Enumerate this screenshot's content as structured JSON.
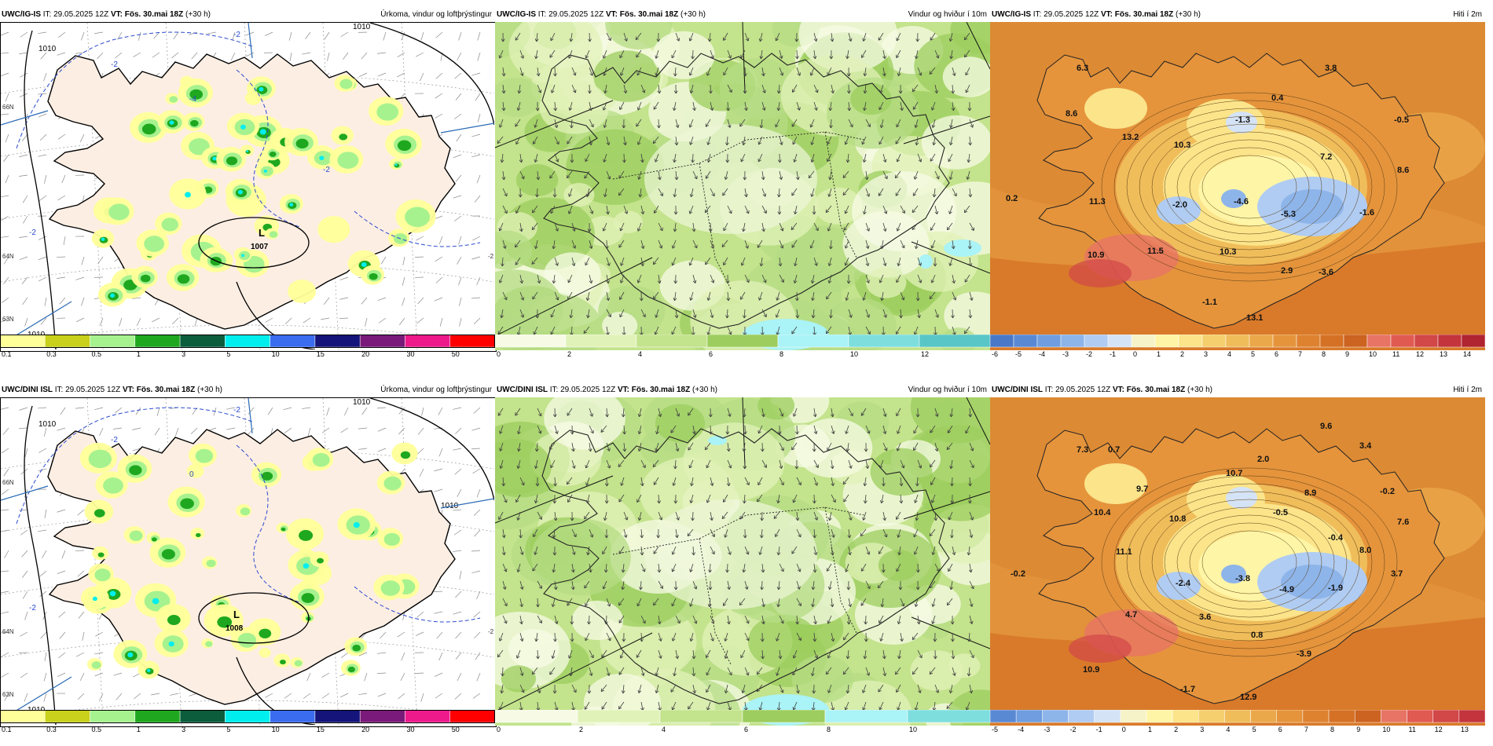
{
  "rows": [
    {
      "panels": [
        {
          "model": "UWC/IG-IS",
          "it_label": "IT:",
          "it": "29.05.2025 12Z",
          "vt_label": "VT:",
          "vt": "Fös. 30.mai 18Z",
          "lead": "(+30 h)",
          "title": "Úrkoma, vindur og loftþrýstingur",
          "kind": "precip",
          "low_symbol": "L",
          "low_value": "1007",
          "isobar_labels": [
            "1010",
            "1010",
            "1010"
          ],
          "dash_labels": [
            "-2",
            "-2",
            "-2",
            "-4",
            "-2"
          ],
          "edge_labels": [
            "66N",
            "64N",
            "63N",
            "-2"
          ]
        },
        {
          "model": "UWC/IG-IS",
          "it_label": "IT:",
          "it": "29.05.2025 12Z",
          "vt_label": "VT:",
          "vt": "Fös. 30.mai 18Z",
          "lead": "(+30 h)",
          "title": "Vindur og hviður í 10m",
          "kind": "wind"
        },
        {
          "model": "UWC/IG-IS",
          "it_label": "IT:",
          "it": "29.05.2025 12Z",
          "vt_label": "VT:",
          "vt": "Fös. 30.mai 18Z",
          "lead": "(+30 h)",
          "title": "Hiti í 2m",
          "kind": "temp",
          "temps": [
            "6.3",
            "3.8",
            "8.6",
            "0.4",
            "-1.3",
            "-0.5",
            "13.2",
            "10.3",
            "7.2",
            "8.6",
            "0.2",
            "11.3",
            "-2.0",
            "-4.6",
            "-5.3",
            "-1.6",
            "10.9",
            "11.5",
            "10.3",
            "2.9",
            "-3.6",
            "-1.1",
            "13.1"
          ]
        }
      ]
    },
    {
      "panels": [
        {
          "model": "UWC/DINI ISL",
          "it_label": "IT:",
          "it": "29.05.2025 12Z",
          "vt_label": "VT:",
          "vt": "Fös. 30.mai 18Z",
          "lead": "(+30 h)",
          "title": "Úrkoma, vindur og loftþrýstingur",
          "kind": "precip",
          "low_symbol": "L",
          "low_value": "1008",
          "isobar_labels": [
            "1010",
            "1010",
            "1010",
            "1010"
          ],
          "dash_labels": [
            "-2",
            "-2",
            "-2",
            "0"
          ],
          "edge_labels": [
            "66N",
            "64N",
            "63N",
            "-2"
          ]
        },
        {
          "model": "UWC/DINI ISL",
          "it_label": "IT:",
          "it": "29.05.2025 12Z",
          "vt_label": "VT:",
          "vt": "Fös. 30.mai 18Z",
          "lead": "(+30 h)",
          "title": "Vindur og hviður í 10m",
          "kind": "wind"
        },
        {
          "model": "UWC/DINI ISL",
          "it_label": "IT:",
          "it": "29.05.2025 12Z",
          "vt_label": "VT:",
          "vt": "Fös. 30.mai 18Z",
          "lead": "(+30 h)",
          "title": "Hiti í 2m",
          "kind": "temp",
          "temps": [
            "7.3",
            "0.7",
            "9.6",
            "3.4",
            "10.7",
            "2.0",
            "9.7",
            "10.4",
            "10.8",
            "-0.5",
            "8.9",
            "-0.2",
            "7.6",
            "11.1",
            "-0.4",
            "8.0",
            "-0.2",
            "-2.4",
            "-3.8",
            "-4.9",
            "-1.9",
            "3.7",
            "4.7",
            "3.6",
            "0.8",
            "-3.9",
            "10.9",
            "-1.7",
            "12.9"
          ]
        }
      ]
    }
  ],
  "colorbars": {
    "precip": {
      "labels": [
        "0.1",
        "0.3",
        "0.5",
        "1",
        "3",
        "5",
        "10",
        "15",
        "20",
        "30",
        "50"
      ],
      "colors": [
        "#ffff99",
        "#c9d11c",
        "#a6f28f",
        "#1fa81f",
        "#0b5d3c",
        "#00eeee",
        "#3a6cf0",
        "#14147a",
        "#7a1a7a",
        "#ee1a8c",
        "#ff0000"
      ]
    },
    "wind_row1": {
      "labels": [
        "0",
        "2",
        "4",
        "6",
        "8",
        "10",
        "12"
      ],
      "colors": [
        "#f7fbe6",
        "#e1f2b8",
        "#c3e38c",
        "#9ccd5e",
        "#aaf3f6",
        "#7edede",
        "#58c6c6"
      ]
    },
    "wind_row2": {
      "labels": [
        "0",
        "2",
        "4",
        "6",
        "8",
        "10"
      ],
      "colors": [
        "#f7fbe6",
        "#e1f2b8",
        "#c3e38c",
        "#9ccd5e",
        "#aaf3f6",
        "#7edede"
      ]
    },
    "temp_row1": {
      "labels": [
        "-6",
        "-5",
        "-4",
        "-3",
        "-2",
        "-1",
        "0",
        "1",
        "2",
        "3",
        "4",
        "5",
        "6",
        "7",
        "8",
        "9",
        "10",
        "11",
        "12",
        "13",
        "14"
      ],
      "colors": [
        "#4a78c8",
        "#5a89d4",
        "#6f9ddf",
        "#8eb5ea",
        "#b0ccf2",
        "#d5e3f6",
        "#f6f3c9",
        "#fff5a6",
        "#fbe48a",
        "#f5cf6d",
        "#f0bd5b",
        "#eba84a",
        "#e5943c",
        "#de8230",
        "#d57124",
        "#cd6320",
        "#e77464",
        "#e05a52",
        "#d24747",
        "#c3343d",
        "#b02330"
      ]
    },
    "temp_row2": {
      "labels": [
        "-5",
        "-4",
        "-3",
        "-2",
        "-1",
        "0",
        "1",
        "2",
        "3",
        "4",
        "5",
        "6",
        "7",
        "8",
        "9",
        "10",
        "11",
        "12",
        "13"
      ],
      "colors": [
        "#5a89d4",
        "#6f9ddf",
        "#8eb5ea",
        "#b0ccf2",
        "#d5e3f6",
        "#f6f3c9",
        "#fff5a6",
        "#fbe48a",
        "#f5cf6d",
        "#f0bd5b",
        "#eba84a",
        "#e5943c",
        "#de8230",
        "#d57124",
        "#cd6320",
        "#e77464",
        "#e05a52",
        "#d24747",
        "#c3343d"
      ]
    }
  }
}
